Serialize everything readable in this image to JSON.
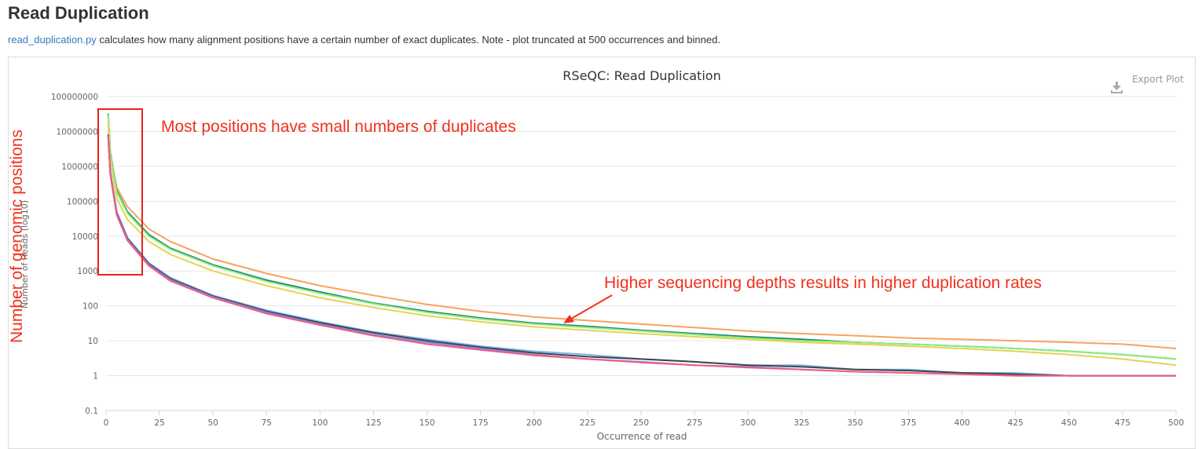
{
  "section": {
    "title": "Read Duplication",
    "link_text": "read_duplication.py",
    "description": " calculates how many alignment positions have a certain number of exact duplicates. Note - plot truncated at 500 occurrences and binned."
  },
  "export_label": "Export Plot",
  "annotations": {
    "left_label": "Number of genomic positions",
    "top_note": "Most positions have small numbers of duplicates",
    "arrow_note": "Higher sequencing depths results in higher duplication rates"
  },
  "colors": {
    "annotation_red": "#f0311d",
    "grid": "#e6e6e6"
  },
  "chart_data": {
    "type": "line",
    "title": "RSeQC: Read Duplication",
    "xlabel": "Occurrence of read",
    "ylabel": "Number of Reads (log10)",
    "y_scale": "log",
    "xlim": [
      0,
      500
    ],
    "ylim": [
      0.1,
      100000000
    ],
    "x_ticks": [
      "0",
      "25",
      "50",
      "75",
      "100",
      "125",
      "150",
      "175",
      "200",
      "225",
      "250",
      "275",
      "300",
      "325",
      "350",
      "375",
      "400",
      "425",
      "450",
      "475",
      "500"
    ],
    "y_ticks": [
      "0.1",
      "1",
      "10",
      "100",
      "1000",
      "10000",
      "100000",
      "1000000",
      "10000000",
      "100000000"
    ],
    "grid": true,
    "legend": "none",
    "series": [
      {
        "color": "#f7a35c",
        "x": [
          1,
          2,
          5,
          10,
          20,
          30,
          50,
          75,
          100,
          125,
          150,
          175,
          200,
          225,
          250,
          275,
          300,
          325,
          350,
          375,
          400,
          425,
          450,
          475,
          500
        ],
        "y": [
          9000000,
          1800000,
          250000,
          70000,
          16000,
          7000,
          2200,
          850,
          380,
          200,
          110,
          70,
          48,
          38,
          30,
          24,
          19,
          16,
          14,
          12,
          11,
          10,
          9,
          8,
          6
        ]
      },
      {
        "color": "#1a8a6a",
        "x": [
          1,
          2,
          5,
          10,
          20,
          30,
          50,
          75,
          100,
          125,
          150,
          175,
          200,
          225,
          250,
          275,
          300,
          325,
          350,
          375,
          400,
          425,
          450,
          475,
          500
        ],
        "y": [
          32000000,
          2500000,
          200000,
          50000,
          11000,
          4500,
          1500,
          550,
          250,
          120,
          70,
          45,
          32,
          26,
          20,
          16,
          13,
          11,
          9,
          8,
          7,
          6,
          5,
          4,
          3
        ]
      },
      {
        "color": "#90ed7d",
        "x": [
          1,
          2,
          5,
          10,
          20,
          30,
          50,
          75,
          100,
          125,
          150,
          175,
          200,
          225,
          250,
          275,
          300,
          325,
          350,
          375,
          400,
          425,
          450,
          475,
          500
        ],
        "y": [
          30000000,
          2200000,
          180000,
          45000,
          10000,
          4200,
          1400,
          500,
          230,
          115,
          65,
          42,
          30,
          24,
          19,
          15,
          12,
          10,
          9,
          8,
          7,
          6,
          5,
          4,
          3
        ]
      },
      {
        "color": "#e4d354",
        "x": [
          1,
          2,
          5,
          10,
          20,
          30,
          50,
          75,
          100,
          125,
          150,
          175,
          200,
          225,
          250,
          275,
          300,
          325,
          350,
          375,
          400,
          425,
          450,
          475,
          500
        ],
        "y": [
          20000000,
          1500000,
          120000,
          30000,
          7000,
          3000,
          1000,
          380,
          170,
          90,
          52,
          35,
          25,
          20,
          16,
          13,
          11,
          9,
          8,
          7,
          6,
          5,
          4,
          3,
          2
        ]
      },
      {
        "color": "#7cb5ec",
        "x": [
          1,
          2,
          5,
          10,
          20,
          30,
          50,
          75,
          100,
          125,
          150,
          175,
          200,
          225,
          250,
          275,
          300,
          325,
          350,
          375,
          400,
          425,
          450,
          475,
          500
        ],
        "y": [
          8000000,
          700000,
          50000,
          9000,
          1700,
          650,
          200,
          75,
          35,
          18,
          11,
          7,
          5,
          4,
          3,
          2.5,
          2,
          2,
          1.5,
          1.5,
          1.2,
          1.2,
          1,
          1,
          1
        ]
      },
      {
        "color": "#434348",
        "x": [
          1,
          2,
          5,
          10,
          20,
          30,
          50,
          75,
          100,
          125,
          150,
          175,
          200,
          225,
          250,
          275,
          300,
          325,
          350,
          375,
          400,
          425,
          450,
          475,
          500
        ],
        "y": [
          8000000,
          650000,
          45000,
          8500,
          1600,
          600,
          190,
          70,
          33,
          17,
          10,
          6.5,
          4.5,
          3.5,
          3,
          2.5,
          2,
          1.8,
          1.5,
          1.4,
          1.2,
          1.1,
          1,
          1,
          1
        ]
      },
      {
        "color": "#8085e9",
        "x": [
          1,
          2,
          5,
          10,
          20,
          30,
          50,
          75,
          100,
          125,
          150,
          175,
          200,
          225,
          250,
          275,
          300,
          325,
          350,
          375,
          400,
          425,
          450,
          475,
          500
        ],
        "y": [
          7500000,
          600000,
          42000,
          8000,
          1500,
          560,
          180,
          65,
          30,
          15,
          9,
          6,
          4,
          3,
          2.5,
          2,
          1.8,
          1.5,
          1.3,
          1.2,
          1.1,
          1,
          1,
          1,
          1
        ]
      },
      {
        "color": "#f15c80",
        "x": [
          1,
          2,
          5,
          10,
          20,
          30,
          50,
          75,
          100,
          125,
          150,
          175,
          200,
          225,
          250,
          275,
          300,
          325,
          350,
          375,
          400,
          425,
          450,
          475,
          500
        ],
        "y": [
          7000000,
          580000,
          40000,
          7500,
          1400,
          520,
          170,
          60,
          28,
          14,
          8,
          5.5,
          3.8,
          3,
          2.4,
          2,
          1.7,
          1.5,
          1.3,
          1.2,
          1.1,
          1,
          1,
          1,
          1
        ]
      }
    ]
  }
}
